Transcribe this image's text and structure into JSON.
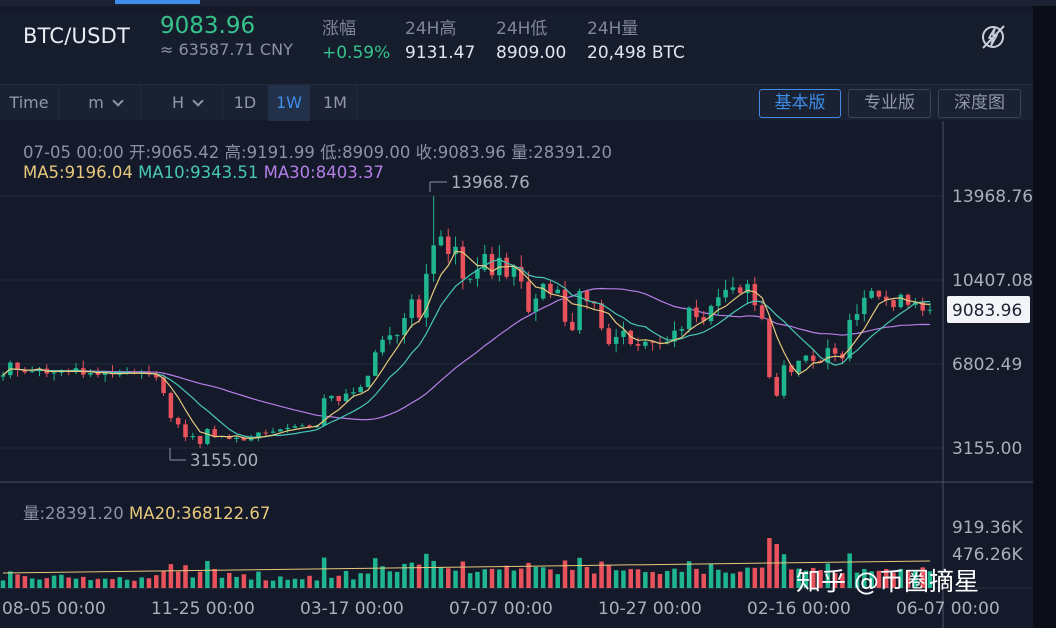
{
  "header": {
    "pair": "BTC/USDT",
    "last_price": "9083.96",
    "last_price_cny": "≈ 63587.71 CNY",
    "stats": [
      {
        "label": "涨幅",
        "value": "+0.59%",
        "color": "#36c38b"
      },
      {
        "label": "24H高",
        "value": "9131.47"
      },
      {
        "label": "24H低",
        "value": "8909.00"
      },
      {
        "label": "24H量",
        "value": "20,498 BTC"
      }
    ],
    "settings_icon": "bolt-off-icon"
  },
  "toolbar": {
    "time_label": "Time",
    "minute_label": "m",
    "hour_label": "H",
    "intervals": [
      "1D",
      "1W",
      "1M"
    ],
    "selected_interval": "1W",
    "views": [
      "基本版",
      "专业版",
      "深度图"
    ],
    "selected_view": "基本版"
  },
  "ohlc": {
    "date": "07-05 00:00",
    "open": "开:9065.42",
    "high": "高:9191.99",
    "low": "低:8909.00",
    "close": "收:9083.96",
    "volume": "量:28391.20"
  },
  "ma": {
    "ma5": "MA5:9196.04",
    "ma10": "MA10:9343.51",
    "ma30": "MA30:8403.37"
  },
  "volume_panel": {
    "volume": "量:28391.20",
    "ma20": "MA20:368122.67"
  },
  "watermark": "知乎 @币圈摘星",
  "colors": {
    "up": "#1fb58f",
    "down": "#e8525c",
    "ma5": "#e7c87c",
    "ma10": "#48c8b6",
    "ma30": "#b57ee8",
    "accent": "#3d8de9"
  },
  "chart_data": {
    "type": "candlestick",
    "interval": "1W",
    "price_axis": {
      "ticks": [
        "13968.76",
        "10407.08",
        "6802.49",
        "3155.00"
      ],
      "tick_values": [
        13968.76,
        10407.08,
        6802.49,
        3155.0
      ],
      "current_label": "9083.96",
      "current": 9083.96
    },
    "volume_axis": {
      "ticks": [
        "919.36K",
        "476.26K"
      ],
      "tick_values": [
        919360,
        476260
      ]
    },
    "x_ticks": [
      "08-05 00:00",
      "11-25 00:00",
      "03-17 00:00",
      "07-07 00:00",
      "10-27 00:00",
      "02-16 00:00",
      "06-07 00:00"
    ],
    "annotations": {
      "max_label": "13968.76",
      "max": 13968.76,
      "min_label": "3155.00",
      "min": 3155.0
    },
    "closes": [
      6280,
      6820,
      6500,
      6410,
      6450,
      6560,
      6350,
      6390,
      6500,
      6410,
      6580,
      6300,
      6370,
      6290,
      6430,
      6320,
      6340,
      6410,
      6340,
      6390,
      6310,
      6180,
      5510,
      4440,
      4170,
      3620,
      3670,
      3330,
      3970,
      3640,
      3670,
      3540,
      3600,
      3480,
      3570,
      3820,
      3810,
      3860,
      3960,
      4020,
      4090,
      4120,
      4050,
      4120,
      5290,
      5390,
      5170,
      5490,
      5550,
      5770,
      6250,
      7260,
      7800,
      7990,
      8000,
      8730,
      9530,
      8750,
      10630,
      11850,
      12230,
      11480,
      11790,
      10420,
      10420,
      10800,
      11480,
      10570,
      11320,
      10500,
      10930,
      10300,
      9000,
      9570,
      10200,
      9790,
      9950,
      8570,
      8210,
      9890,
      9450,
      9360,
      8290,
      7620,
      7920,
      8190,
      7620,
      7540,
      7710,
      7680,
      7650,
      7720,
      8190,
      8260,
      9180,
      8770,
      8600,
      9250,
      9620,
      9940,
      10050,
      9800,
      10190,
      9280,
      8700,
      6200,
      5400,
      6700,
      6410,
      6900,
      7120,
      6890,
      6820,
      7440,
      7200,
      7000,
      8650,
      8900,
      9600,
      9900,
      9650,
      9500,
      9200,
      9730,
      9300,
      9400,
      9050,
      9083.96
    ],
    "ma5_label": "MA5:9196.04",
    "ma10_label": "MA10:9343.51",
    "ma30_label": "MA30:8403.37"
  }
}
